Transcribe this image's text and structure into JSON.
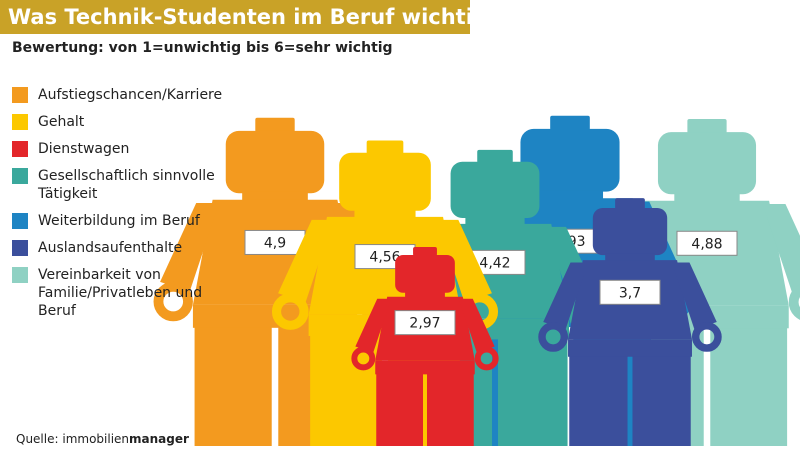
{
  "chart_data": {
    "type": "pictorial-bar",
    "title": "Was Technik-Studenten im Beruf wichtig ist",
    "subtitle": "Bewertung: von 1=unwichtig bis 6=sehr wichtig",
    "series": [
      {
        "name": "Aufstiegschancen/Karriere",
        "color": "#f39a1f",
        "values": [
          4.9
        ],
        "value_labels": [
          "4,9"
        ]
      },
      {
        "name": "Gehalt",
        "color": "#fcc800",
        "values": [
          4.56
        ],
        "value_labels": [
          "4,56"
        ]
      },
      {
        "name": "Dienstwagen",
        "color": "#e3262a",
        "values": [
          2.97
        ],
        "value_labels": [
          "2,97"
        ]
      },
      {
        "name": "Gesellschaftlich sinnvolle Tätigkeit",
        "color": "#3aa89c",
        "values": [
          4.42
        ],
        "value_labels": [
          "4,42"
        ]
      },
      {
        "name": "Weiterbildung im Beruf",
        "color": "#1e84c3",
        "values": [
          4.93
        ],
        "value_labels": [
          "4,93"
        ]
      },
      {
        "name": "Auslandsaufenthalte",
        "color": "#3b4f9c",
        "values": [
          3.7
        ],
        "value_labels": [
          "3,7"
        ]
      },
      {
        "name": "Vereinbarkeit von Familie/Privatleben und Beruf",
        "color": "#8fd1c3",
        "values": [
          4.88
        ],
        "value_labels": [
          "4,88"
        ]
      }
    ],
    "source": {
      "label": "Quelle:",
      "name": "immobilien",
      "name_bold": "manager"
    }
  }
}
